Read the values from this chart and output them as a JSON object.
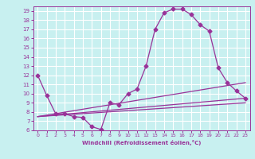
{
  "xlabel": "Windchill (Refroidissement éolien,°C)",
  "xlim": [
    -0.5,
    23.5
  ],
  "ylim": [
    6,
    19.5
  ],
  "yticks": [
    6,
    7,
    8,
    9,
    10,
    11,
    12,
    13,
    14,
    15,
    16,
    17,
    18,
    19
  ],
  "xticks": [
    0,
    1,
    2,
    3,
    4,
    5,
    6,
    7,
    8,
    9,
    10,
    11,
    12,
    13,
    14,
    15,
    16,
    17,
    18,
    19,
    20,
    21,
    22,
    23
  ],
  "bg_color": "#c8f0f0",
  "line_color": "#993399",
  "grid_color": "#ffffff",
  "lines": [
    {
      "x": [
        0,
        1,
        2,
        3,
        4,
        5,
        6,
        7,
        8,
        9,
        10,
        11,
        12,
        13,
        14,
        15,
        16,
        17,
        18,
        19,
        20,
        21,
        22,
        23
      ],
      "y": [
        12,
        9.8,
        7.8,
        7.8,
        7.5,
        7.4,
        6.4,
        6.1,
        9.0,
        8.8,
        10.0,
        10.5,
        13.0,
        17.0,
        18.8,
        19.2,
        19.2,
        18.6,
        17.5,
        16.8,
        12.8,
        11.2,
        10.3,
        9.5
      ],
      "marker": "D",
      "markersize": 2.5,
      "lw": 0.9
    },
    {
      "x": [
        0,
        23
      ],
      "y": [
        7.5,
        11.2
      ],
      "marker": null,
      "markersize": 0,
      "lw": 0.9
    },
    {
      "x": [
        0,
        23
      ],
      "y": [
        7.5,
        9.5
      ],
      "marker": null,
      "markersize": 0,
      "lw": 0.9
    },
    {
      "x": [
        0,
        23
      ],
      "y": [
        7.5,
        9.0
      ],
      "marker": null,
      "markersize": 0,
      "lw": 0.9
    }
  ]
}
